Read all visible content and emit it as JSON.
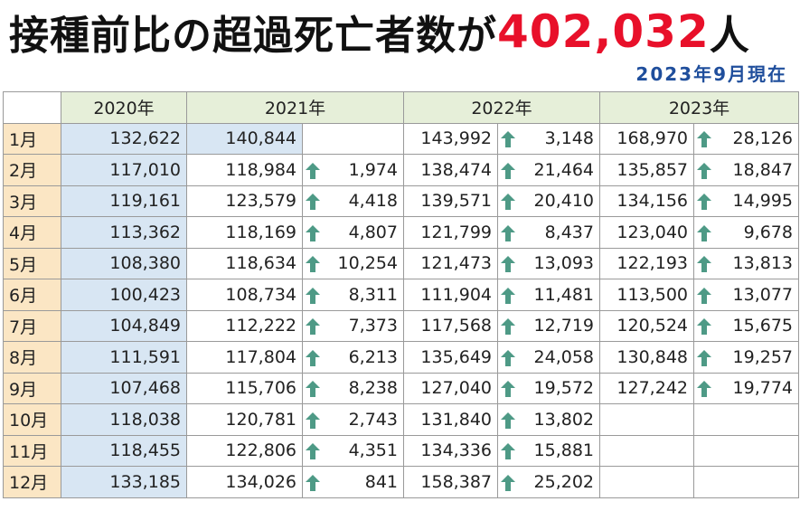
{
  "title": {
    "main": "接種前比の超過死亡者数が",
    "number": "402,032",
    "suffix": "人"
  },
  "subtitle": "2023年9月現在",
  "years": [
    "2020年",
    "2021年",
    "2022年",
    "2023年"
  ],
  "arrow_color": "#4e9a86",
  "rows": [
    {
      "month": "1月",
      "y2020": "132,622",
      "y2021": "140,844",
      "d2021": "",
      "y2022": "143,992",
      "d2022": "3,148",
      "y2023": "168,970",
      "d2023": "28,126"
    },
    {
      "month": "2月",
      "y2020": "117,010",
      "y2021": "118,984",
      "d2021": "1,974",
      "y2022": "138,474",
      "d2022": "21,464",
      "y2023": "135,857",
      "d2023": "18,847"
    },
    {
      "month": "3月",
      "y2020": "119,161",
      "y2021": "123,579",
      "d2021": "4,418",
      "y2022": "139,571",
      "d2022": "20,410",
      "y2023": "134,156",
      "d2023": "14,995"
    },
    {
      "month": "4月",
      "y2020": "113,362",
      "y2021": "118,169",
      "d2021": "4,807",
      "y2022": "121,799",
      "d2022": "8,437",
      "y2023": "123,040",
      "d2023": "9,678"
    },
    {
      "month": "5月",
      "y2020": "108,380",
      "y2021": "118,634",
      "d2021": "10,254",
      "y2022": "121,473",
      "d2022": "13,093",
      "y2023": "122,193",
      "d2023": "13,813"
    },
    {
      "month": "6月",
      "y2020": "100,423",
      "y2021": "108,734",
      "d2021": "8,311",
      "y2022": "111,904",
      "d2022": "11,481",
      "y2023": "113,500",
      "d2023": "13,077"
    },
    {
      "month": "7月",
      "y2020": "104,849",
      "y2021": "112,222",
      "d2021": "7,373",
      "y2022": "117,568",
      "d2022": "12,719",
      "y2023": "120,524",
      "d2023": "15,675"
    },
    {
      "month": "8月",
      "y2020": "111,591",
      "y2021": "117,804",
      "d2021": "6,213",
      "y2022": "135,649",
      "d2022": "24,058",
      "y2023": "130,848",
      "d2023": "19,257"
    },
    {
      "month": "9月",
      "y2020": "107,468",
      "y2021": "115,706",
      "d2021": "8,238",
      "y2022": "127,040",
      "d2022": "19,572",
      "y2023": "127,242",
      "d2023": "19,774"
    },
    {
      "month": "10月",
      "y2020": "118,038",
      "y2021": "120,781",
      "d2021": "2,743",
      "y2022": "131,840",
      "d2022": "13,802",
      "y2023": "",
      "d2023": ""
    },
    {
      "month": "11月",
      "y2020": "118,455",
      "y2021": "122,806",
      "d2021": "4,351",
      "y2022": "134,336",
      "d2022": "15,881",
      "y2023": "",
      "d2023": ""
    },
    {
      "month": "12月",
      "y2020": "133,185",
      "y2021": "134,026",
      "d2021": "841",
      "y2022": "158,387",
      "d2022": "25,202",
      "y2023": "",
      "d2023": ""
    }
  ]
}
